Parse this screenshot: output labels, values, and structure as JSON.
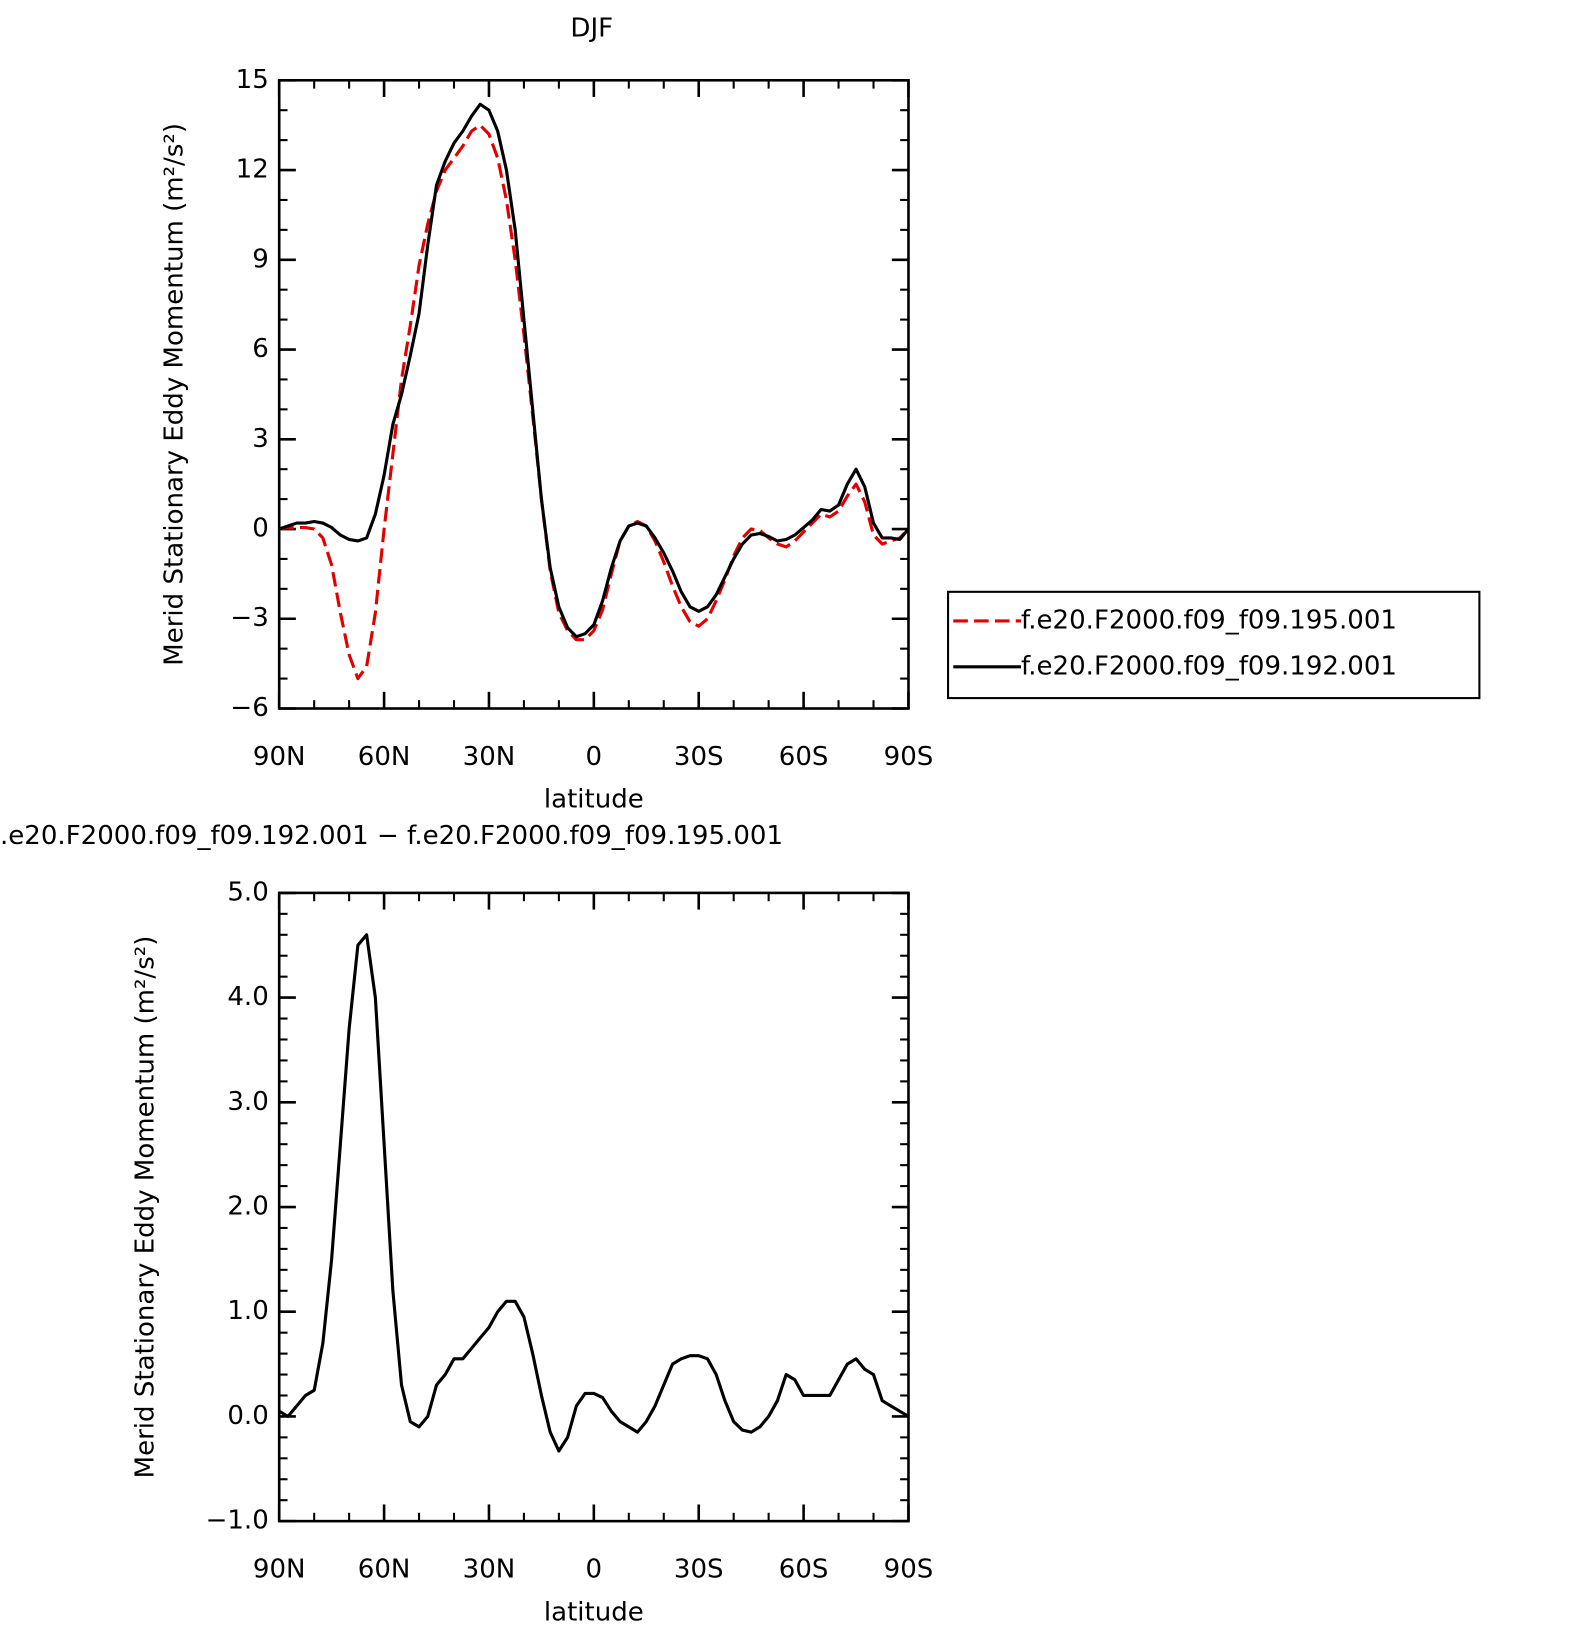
{
  "chart_data": [
    {
      "type": "line",
      "title": "DJF",
      "y_label": "Merid Stationary Eddy Momentum (m²/s²)",
      "x_label": "latitude",
      "xlim": [
        90,
        -90
      ],
      "xticks": [
        {
          "value": 90,
          "label": "90N"
        },
        {
          "value": 60,
          "label": "60N"
        },
        {
          "value": 30,
          "label": "30N"
        },
        0,
        {
          "value": -30,
          "label": "30S"
        },
        {
          "value": -60,
          "label": "60S"
        },
        {
          "value": -90,
          "label": "90S"
        }
      ],
      "ylim": [
        -6,
        15
      ],
      "yticks": [
        {
          "value": -6,
          "label": "−6"
        },
        {
          "value": -3,
          "label": "−3"
        },
        0,
        3,
        6,
        9,
        12,
        15
      ],
      "legend": "right",
      "x": [
        90,
        87.5,
        85,
        82.5,
        80,
        77.5,
        75,
        72.5,
        70,
        67.5,
        65,
        62.5,
        60,
        57.5,
        55,
        52.5,
        50,
        47.5,
        45,
        42.5,
        40,
        37.5,
        35,
        32.5,
        30,
        27.5,
        25,
        22.5,
        20,
        17.5,
        15,
        12.5,
        10,
        7.5,
        5,
        2.5,
        0,
        -2.5,
        -5,
        -7.5,
        -10,
        -12.5,
        -15,
        -17.5,
        -20,
        -22.5,
        -25,
        -27.5,
        -30,
        -32.5,
        -35,
        -37.5,
        -40,
        -42.5,
        -45,
        -47.5,
        -50,
        -52.5,
        -55,
        -57.5,
        -60,
        -62.5,
        -65,
        -67.5,
        -70,
        -72.5,
        -75,
        -77.5,
        -80,
        -82.5,
        -85,
        -87.5,
        -90
      ],
      "series": [
        {
          "name": "f.e20.F2000.f09_f09.195.001",
          "color": "#e00000",
          "dash": "dashed",
          "values": [
            0,
            0.05,
            0.05,
            0.05,
            0,
            -0.3,
            -1.2,
            -2.8,
            -4.2,
            -5.0,
            -4.6,
            -2.8,
            0,
            2.5,
            5.0,
            6.8,
            8.8,
            10.2,
            11.3,
            12.0,
            12.4,
            12.8,
            13.3,
            13.5,
            13.2,
            12.4,
            11.0,
            9.0,
            6.5,
            3.8,
            1.0,
            -1.4,
            -2.8,
            -3.4,
            -3.7,
            -3.7,
            -3.4,
            -2.7,
            -1.5,
            -0.4,
            0.1,
            0.25,
            0.1,
            -0.4,
            -1.1,
            -1.9,
            -2.6,
            -3.1,
            -3.25,
            -3.0,
            -2.4,
            -1.7,
            -0.9,
            -0.3,
            0,
            -0.05,
            -0.3,
            -0.5,
            -0.6,
            -0.4,
            -0.1,
            0.2,
            0.5,
            0.4,
            0.6,
            1.1,
            1.5,
            0.9,
            -0.2,
            -0.5,
            -0.4,
            -0.3,
            0
          ]
        },
        {
          "name": "f.e20.F2000.f09_f09.192.001",
          "color": "#000000",
          "dash": "solid",
          "values": [
            0,
            0.1,
            0.2,
            0.2,
            0.25,
            0.2,
            0.05,
            -0.2,
            -0.35,
            -0.4,
            -0.3,
            0.5,
            1.8,
            3.5,
            4.5,
            5.8,
            7.2,
            9.5,
            11.5,
            12.3,
            12.9,
            13.3,
            13.8,
            14.2,
            14.0,
            13.3,
            12.0,
            10.0,
            7.0,
            4.0,
            1.0,
            -1.3,
            -2.6,
            -3.3,
            -3.6,
            -3.5,
            -3.2,
            -2.4,
            -1.3,
            -0.4,
            0.1,
            0.2,
            0.1,
            -0.3,
            -0.8,
            -1.4,
            -2.1,
            -2.6,
            -2.75,
            -2.6,
            -2.2,
            -1.6,
            -1.0,
            -0.5,
            -0.2,
            -0.15,
            -0.25,
            -0.4,
            -0.35,
            -0.2,
            0.05,
            0.3,
            0.65,
            0.6,
            0.8,
            1.5,
            2.0,
            1.4,
            0.2,
            -0.3,
            -0.3,
            -0.35,
            0
          ]
        }
      ]
    },
    {
      "type": "line",
      "title": ".e20.F2000.f09_f09.192.001 − f.e20.F2000.f09_f09.195.001",
      "y_label": "Merid Stationary Eddy Momentum (m²/s²)",
      "x_label": "latitude",
      "xlim": [
        90,
        -90
      ],
      "xticks": [
        {
          "value": 90,
          "label": "90N"
        },
        {
          "value": 60,
          "label": "60N"
        },
        {
          "value": 30,
          "label": "30N"
        },
        0,
        {
          "value": -30,
          "label": "30S"
        },
        {
          "value": -60,
          "label": "60S"
        },
        {
          "value": -90,
          "label": "90S"
        }
      ],
      "ylim": [
        -1,
        5
      ],
      "yticks": [
        {
          "value": -1,
          "label": "−1.0"
        },
        {
          "value": 0,
          "label": "0.0"
        },
        {
          "value": 1,
          "label": "1.0"
        },
        {
          "value": 2,
          "label": "2.0"
        },
        {
          "value": 3,
          "label": "3.0"
        },
        {
          "value": 4,
          "label": "4.0"
        },
        {
          "value": 5,
          "label": "5.0"
        }
      ],
      "x": [
        90,
        87.5,
        85,
        82.5,
        80,
        77.5,
        75,
        72.5,
        70,
        67.5,
        65,
        62.5,
        60,
        57.5,
        55,
        52.5,
        50,
        47.5,
        45,
        42.5,
        40,
        37.5,
        35,
        32.5,
        30,
        27.5,
        25,
        22.5,
        20,
        17.5,
        15,
        12.5,
        10,
        7.5,
        5,
        2.5,
        0,
        -2.5,
        -5,
        -7.5,
        -10,
        -12.5,
        -15,
        -17.5,
        -20,
        -22.5,
        -25,
        -27.5,
        -30,
        -32.5,
        -35,
        -37.5,
        -40,
        -42.5,
        -45,
        -47.5,
        -50,
        -52.5,
        -55,
        -57.5,
        -60,
        -62.5,
        -65,
        -67.5,
        -70,
        -72.5,
        -75,
        -77.5,
        -80,
        -82.5,
        -85,
        -87.5,
        -90
      ],
      "series": [
        {
          "color": "#000000",
          "dash": "solid",
          "values": [
            0.05,
            0,
            0.1,
            0.2,
            0.25,
            0.7,
            1.5,
            2.6,
            3.7,
            4.5,
            4.6,
            4.0,
            2.6,
            1.2,
            0.3,
            -0.05,
            -0.1,
            0,
            0.3,
            0.4,
            0.55,
            0.55,
            0.65,
            0.75,
            0.85,
            1.0,
            1.1,
            1.1,
            0.95,
            0.6,
            0.2,
            -0.15,
            -0.33,
            -0.2,
            0.1,
            0.22,
            0.22,
            0.18,
            0.05,
            -0.05,
            -0.1,
            -0.15,
            -0.05,
            0.1,
            0.3,
            0.5,
            0.55,
            0.58,
            0.58,
            0.55,
            0.4,
            0.15,
            -0.05,
            -0.13,
            -0.15,
            -0.1,
            0,
            0.15,
            0.4,
            0.35,
            0.2,
            0.2,
            0.2,
            0.2,
            0.35,
            0.5,
            0.55,
            0.45,
            0.4,
            0.15,
            0.1,
            0.05,
            0
          ]
        }
      ]
    }
  ]
}
